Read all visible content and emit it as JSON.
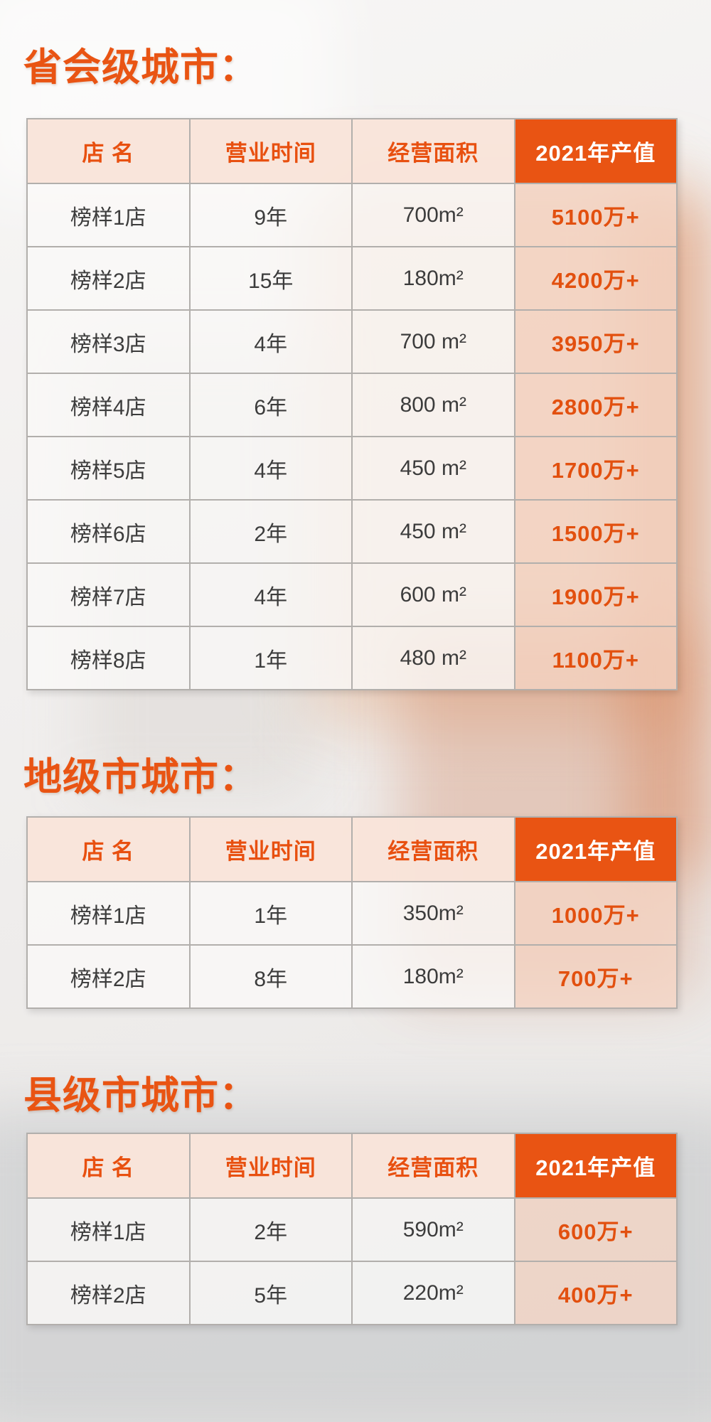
{
  "accent_color": "#e95413",
  "text_color": "#3c3c3c",
  "header_bg_color": "#f9e4da",
  "value_bg_color": "#f5d5c4",
  "sections": [
    {
      "title": "省会级城市：",
      "headers": [
        "店  名",
        "营业时间",
        "经营面积",
        "2021年产值"
      ],
      "rows": [
        [
          "榜样1店",
          "9年",
          "700m²",
          "5100万+"
        ],
        [
          "榜样2店",
          "15年",
          "180m²",
          "4200万+"
        ],
        [
          "榜样3店",
          "4年",
          "700 m²",
          "3950万+"
        ],
        [
          "榜样4店",
          "6年",
          "800 m²",
          "2800万+"
        ],
        [
          "榜样5店",
          "4年",
          "450 m²",
          "1700万+"
        ],
        [
          "榜样6店",
          "2年",
          "450 m²",
          "1500万+"
        ],
        [
          "榜样7店",
          "4年",
          "600 m²",
          "1900万+"
        ],
        [
          "榜样8店",
          "1年",
          "480 m²",
          "1100万+"
        ]
      ]
    },
    {
      "title": "地级市城市：",
      "headers": [
        "店  名",
        "营业时间",
        "经营面积",
        "2021年产值"
      ],
      "rows": [
        [
          "榜样1店",
          "1年",
          "350m²",
          "1000万+"
        ],
        [
          "榜样2店",
          "8年",
          "180m²",
          "700万+"
        ]
      ]
    },
    {
      "title": "县级市城市：",
      "headers": [
        "店  名",
        "营业时间",
        "经营面积",
        "2021年产值"
      ],
      "rows": [
        [
          "榜样1店",
          "2年",
          "590m²",
          "600万+"
        ],
        [
          "榜样2店",
          "5年",
          "220m²",
          "400万+"
        ]
      ]
    }
  ]
}
